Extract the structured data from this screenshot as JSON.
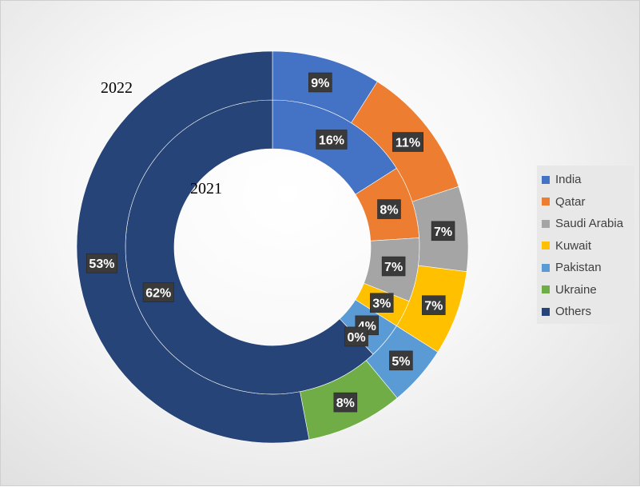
{
  "chart_data": {
    "type": "pie",
    "subtype": "donut",
    "categories": [
      "India",
      "Qatar",
      "Saudi Arabia",
      "Kuwait",
      "Pakistan",
      "Ukraine",
      "Others"
    ],
    "colors": [
      "#4472C4",
      "#ED7D31",
      "#A5A5A5",
      "#FFC000",
      "#5B9BD5",
      "#70AD47",
      "#264478"
    ],
    "series": [
      {
        "name": "2021",
        "ring": "inner",
        "values": [
          16,
          8,
          7,
          3,
          4,
          0,
          62
        ],
        "labels": [
          "16%",
          "8%",
          "7%",
          "3%",
          "4%",
          "0%",
          "62%"
        ]
      },
      {
        "name": "2022",
        "ring": "outer",
        "values": [
          9,
          11,
          7,
          7,
          5,
          8,
          53
        ],
        "labels": [
          "9%",
          "11%",
          "7%",
          "7%",
          "5%",
          "8%",
          "53%"
        ]
      }
    ],
    "legend_position": "right"
  }
}
